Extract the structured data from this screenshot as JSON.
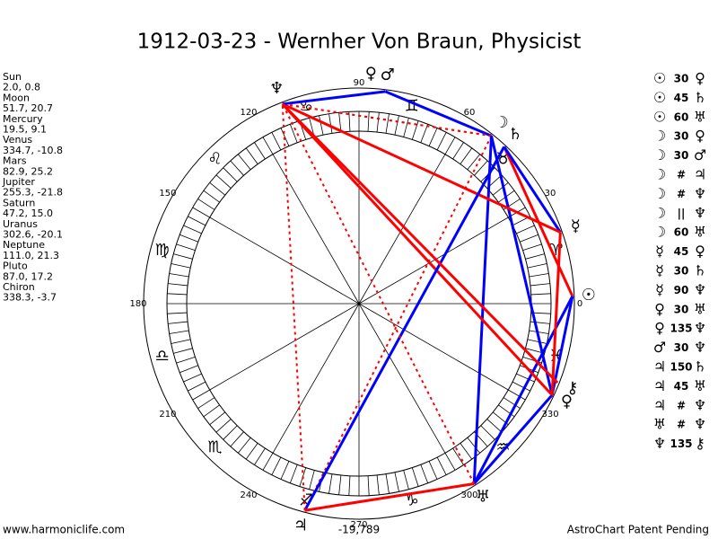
{
  "title": "1912-03-23 - Wernher Von Braun, Physicist",
  "planets": [
    {
      "name": "Sun",
      "glyph": "☉",
      "position": "2.0, 0.8"
    },
    {
      "name": "Moon",
      "glyph": "☽",
      "position": "51.7, 20.7"
    },
    {
      "name": "Mercury",
      "glyph": "☿",
      "position": "19.5, 9.1"
    },
    {
      "name": "Venus",
      "glyph": "♀",
      "position": "334.7, -10.8"
    },
    {
      "name": "Mars",
      "glyph": "♂",
      "position": "82.9, 25.2"
    },
    {
      "name": "Jupiter",
      "glyph": "♃",
      "position": "255.3, -21.8"
    },
    {
      "name": "Saturn",
      "glyph": "♄",
      "position": "47.2, 15.0"
    },
    {
      "name": "Uranus",
      "glyph": "♅",
      "position": "302.6, -20.1"
    },
    {
      "name": "Neptune",
      "glyph": "♆",
      "position": "111.0, 21.3"
    },
    {
      "name": "Pluto",
      "glyph": "♀",
      "position": "87.0, 17.2"
    },
    {
      "name": "Chiron",
      "glyph": "⚷",
      "position": "338.3, -3.7"
    }
  ],
  "aspects": [
    {
      "a": "☉",
      "angle": 30,
      "b": "♀",
      "color": "#0000ff"
    },
    {
      "a": "☉",
      "angle": 45,
      "b": "♄",
      "color": "#ff0000"
    },
    {
      "a": "☉",
      "angle": 60,
      "b": "♅",
      "color": "#0000ff"
    },
    {
      "a": "☽",
      "angle": 30,
      "b": "♀",
      "color": "#0000ff"
    },
    {
      "a": "☽",
      "angle": 30,
      "b": "♂",
      "color": "#0000ff"
    },
    {
      "a": "☽",
      "angle": "#",
      "b": "♃",
      "color": "#ff0000"
    },
    {
      "a": "☽",
      "angle": "#",
      "b": "♆",
      "color": "#ff0000"
    },
    {
      "a": "☽",
      "angle": "||",
      "b": "♆",
      "color": "#ff0000"
    },
    {
      "a": "☽",
      "angle": 60,
      "b": "♅",
      "color": "#0000ff"
    },
    {
      "a": "☿",
      "angle": 45,
      "b": "♀",
      "color": "#ff0000"
    },
    {
      "a": "☿",
      "angle": 30,
      "b": "♄",
      "color": "#0000ff"
    },
    {
      "a": "☿",
      "angle": 90,
      "b": "♆",
      "color": "#ff0000"
    },
    {
      "a": "♀",
      "angle": 30,
      "b": "♅",
      "color": "#0000ff"
    },
    {
      "a": "♀",
      "angle": 135,
      "b": "♆",
      "color": "#ff0000"
    },
    {
      "a": "♂",
      "angle": 30,
      "b": "♆",
      "color": "#0000ff"
    },
    {
      "a": "♃",
      "angle": 150,
      "b": "♄",
      "color": "#0000ff"
    },
    {
      "a": "♃",
      "angle": 45,
      "b": "♅",
      "color": "#ff0000"
    },
    {
      "a": "♃",
      "angle": "#",
      "b": "♆",
      "color": "#ff0000"
    },
    {
      "a": "♅",
      "angle": "#",
      "b": "♆",
      "color": "#ff0000"
    },
    {
      "a": "♆",
      "angle": 135,
      "b": "⚷",
      "color": "#ff0000"
    }
  ],
  "degree_labels": [
    0,
    30,
    60,
    90,
    120,
    150,
    180,
    210,
    240,
    270,
    300,
    330
  ],
  "signs": [
    "♈",
    "♉",
    "♊",
    "♋",
    "♌",
    "♍",
    "♎",
    "♏",
    "♐",
    "♑",
    "♒",
    "♓"
  ],
  "bottom_value": "-19,789",
  "footer_left": "www.harmoniclife.com",
  "footer_right": "AstroChart Patent Pending"
}
